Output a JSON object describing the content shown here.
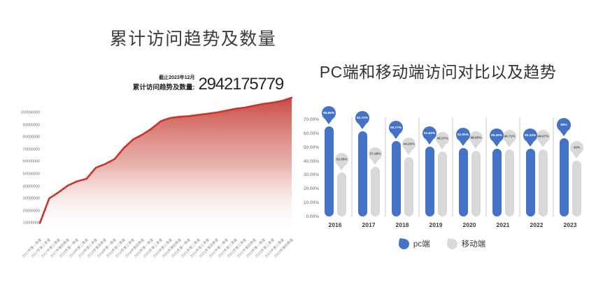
{
  "colors": {
    "red_line": "#c9342e",
    "red_fill_top": "#c5423a",
    "blue": "#4472c4",
    "gray": "#d9d9db",
    "separator": "#e4e4e6"
  },
  "chart_data": [
    {
      "id": "cumulative-visits",
      "type": "area",
      "title": "累计访问趋势及数量",
      "kpi_date": "截止2023年12月",
      "kpi_label": "累计访问趋势及数量:",
      "kpi_value": "2942175779",
      "line_color": "#c9342e",
      "grid": false,
      "legend": "none",
      "ylim": [
        0,
        115000000
      ],
      "yticks": [
        100000000,
        90000000,
        80000000,
        70000000,
        60000000,
        50000000,
        40000000,
        30000000,
        20000000,
        10000000
      ],
      "x": [
        "2017年第一季度",
        "2017年第二季度",
        "2017年第三季度",
        "2017年第四季度",
        "2018年第一季度",
        "2018年第二季度",
        "2018年第三季度",
        "2018年第四季度",
        "2019年第一季度",
        "2019年第二季度",
        "2019年第三季度",
        "2019年第四季度",
        "2020年第一季度",
        "2020年第二季度",
        "2020年第三季度",
        "2020年第四季度",
        "2021年第一季度",
        "2021年第二季度",
        "2021年第三季度",
        "2021年第四季度",
        "2022年第一季度",
        "2022年第二季度",
        "2022年第三季度",
        "2022年第四季度",
        "2023年第一季度",
        "2023年第二季度",
        "2023年第三季度",
        "2023年第四季度"
      ],
      "values": [
        10000000,
        30000000,
        35000000,
        40500000,
        44000000,
        46000000,
        55000000,
        58000000,
        62000000,
        71000000,
        78000000,
        82000000,
        87000000,
        93000000,
        95500000,
        96500000,
        97000000,
        98000000,
        99000000,
        100000000,
        101500000,
        103000000,
        104000000,
        105500000,
        107000000,
        108000000,
        109500000,
        112000000
      ]
    },
    {
      "id": "pc-vs-mobile",
      "type": "lollipop-bar",
      "title": "PC端和移动端访问对比以及趋势",
      "categories": [
        "2016",
        "2017",
        "2018",
        "2019",
        "2020",
        "2021",
        "2022",
        "2023"
      ],
      "ylim": [
        0,
        70
      ],
      "yticks": [
        "70.00%",
        "60.00%",
        "50.00%",
        "40.00%",
        "30.00%",
        "20.00%",
        "10.00%",
        "0.00%"
      ],
      "legend_position": "bottom",
      "series": [
        {
          "key": "pc",
          "name": "pc端",
          "icon": "balloon-icon",
          "color": "#4472c4",
          "label_color": "#ffffff",
          "values": [
            66.65,
            62.72,
            55.77,
            51.63,
            51.05,
            50.29,
            50.33,
            58
          ],
          "labels": [
            "66.65%",
            "62.72%",
            "55.77%",
            "51.63%",
            "51.05%",
            "50.29%",
            "50.33%",
            "58%"
          ]
        },
        {
          "key": "mobile",
          "name": "移动端",
          "icon": "balloon-icon",
          "color": "#d9d9db",
          "label_color": "#4f4f4f",
          "values": [
            33.35,
            37.28,
            44.23,
            48.37,
            48.95,
            49.71,
            49.67,
            42
          ],
          "labels": [
            "33.35%",
            "37.28%",
            "44.23%",
            "48.37%",
            "48.95%",
            "49.71%",
            "49.67%",
            "42%"
          ]
        }
      ]
    }
  ]
}
